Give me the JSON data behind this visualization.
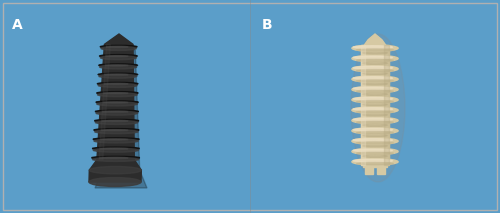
{
  "fig_width": 5.0,
  "fig_height": 2.13,
  "dpi": 100,
  "bg_color": "#5b9ec9",
  "border_color": "#b0b0b0",
  "label_A": "A",
  "label_B": "B",
  "label_color": "white",
  "label_fontsize": 10,
  "label_fontweight": "bold",
  "screw_A_body": "#2c2c2c",
  "screw_A_hl": "#555555",
  "screw_A_shadow": "#111111",
  "screw_A_mid": "#3d3d3d",
  "screw_B_body": "#d6c9a3",
  "screw_B_hl": "#ede0c4",
  "screw_B_shadow": "#b8ab85",
  "screw_B_mid": "#c8bb97",
  "bg_color_left": "#5b9ec9",
  "bg_color_right": "#5b9ec9",
  "divider_color": "#888888"
}
